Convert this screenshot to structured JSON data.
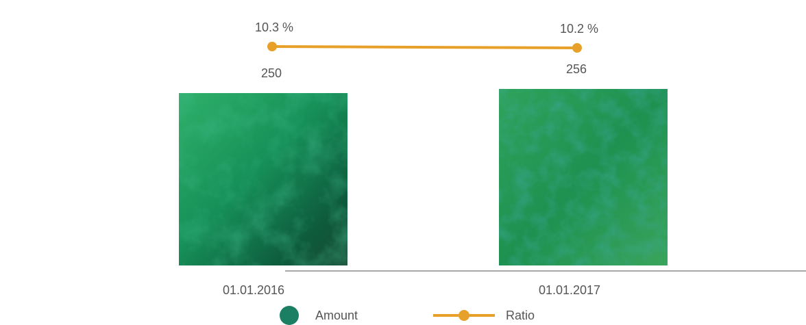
{
  "colors": {
    "title": "#0f8a73",
    "amount": "#1a7f63",
    "ratio": "#e7a12a",
    "axis": "#a8a8a8",
    "text": "#555555"
  },
  "title": "",
  "chart_data": {
    "type": "bar",
    "title": "",
    "categories": [
      "01.01.2016",
      "01.01.2017"
    ],
    "series": [
      {
        "name": "Amount",
        "values": [
          250,
          256
        ],
        "value_labels": [
          "250",
          "256"
        ]
      },
      {
        "name": "Ratio",
        "type": "line",
        "values": [
          10.3,
          10.2
        ],
        "value_labels": [
          "10.3 %",
          "10.2 %"
        ]
      }
    ],
    "xlabel": "",
    "ylabel": "",
    "grid": false,
    "legend_position": "bottom"
  },
  "legend": {
    "amount_label": "Amount",
    "ratio_label": "Ratio"
  }
}
